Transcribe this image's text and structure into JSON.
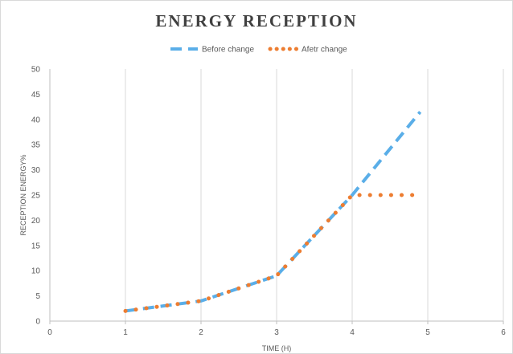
{
  "chart_data": {
    "type": "line",
    "title": "ENERGY RECEPTION",
    "xlabel": "TIME (H)",
    "ylabel": "RECEPTION ENERGY%",
    "xlim": [
      0,
      6
    ],
    "ylim": [
      0,
      50
    ],
    "x_ticks": [
      "0",
      "1",
      "2",
      "3",
      "4",
      "5",
      "6"
    ],
    "y_ticks": [
      "0",
      "5",
      "10",
      "15",
      "20",
      "25",
      "30",
      "35",
      "40",
      "45",
      "50"
    ],
    "grid": "vertical",
    "legend_position": "top",
    "series": [
      {
        "name": "Before change",
        "color": "#5aaee8",
        "style": "dashed",
        "x": [
          1,
          2,
          3,
          4,
          4.9
        ],
        "y": [
          2,
          4,
          9,
          25,
          41.5
        ]
      },
      {
        "name": "Afetr change",
        "color": "#ed7d31",
        "style": "dotted",
        "x": [
          1,
          2,
          3,
          4,
          4.9
        ],
        "y": [
          2,
          4,
          9,
          25,
          25
        ]
      }
    ]
  }
}
